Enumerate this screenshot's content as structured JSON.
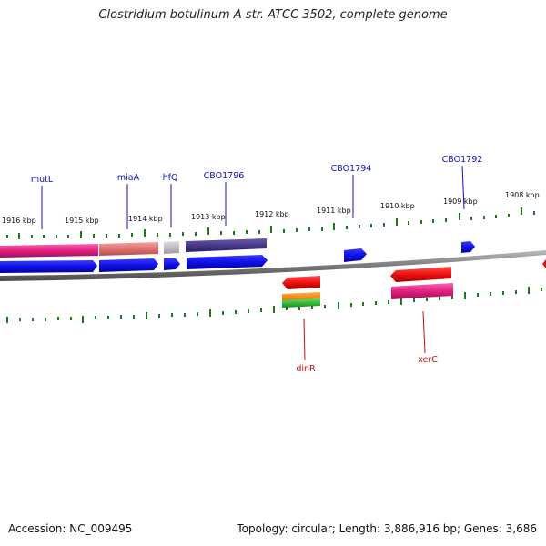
{
  "title": "Clostridium botulinum A str. ATCC 3502, complete genome",
  "footer": {
    "accession": "Accession: NC_009495",
    "summary": "Topology: circular; Length: 3,886,916 bp; Genes: 3,686"
  },
  "scale_ticks": [
    "1916 kbp",
    "1915 kbp",
    "1914 kbp",
    "1913 kbp",
    "1912 kbp",
    "1911 kbp",
    "1910 kbp",
    "1909 kbp",
    "1908 kbp"
  ],
  "gene_labels_upper": [
    "mutL",
    "miaA",
    "hfQ",
    "CBO1796",
    "CBO1794",
    "CBO1792"
  ],
  "gene_labels_lower": [
    "dinR",
    "xerC"
  ],
  "colors": {
    "upper_label": "#1010c0",
    "lower_label": "#c01010",
    "tick": "#1a7a1a",
    "backbone": "#888888"
  }
}
